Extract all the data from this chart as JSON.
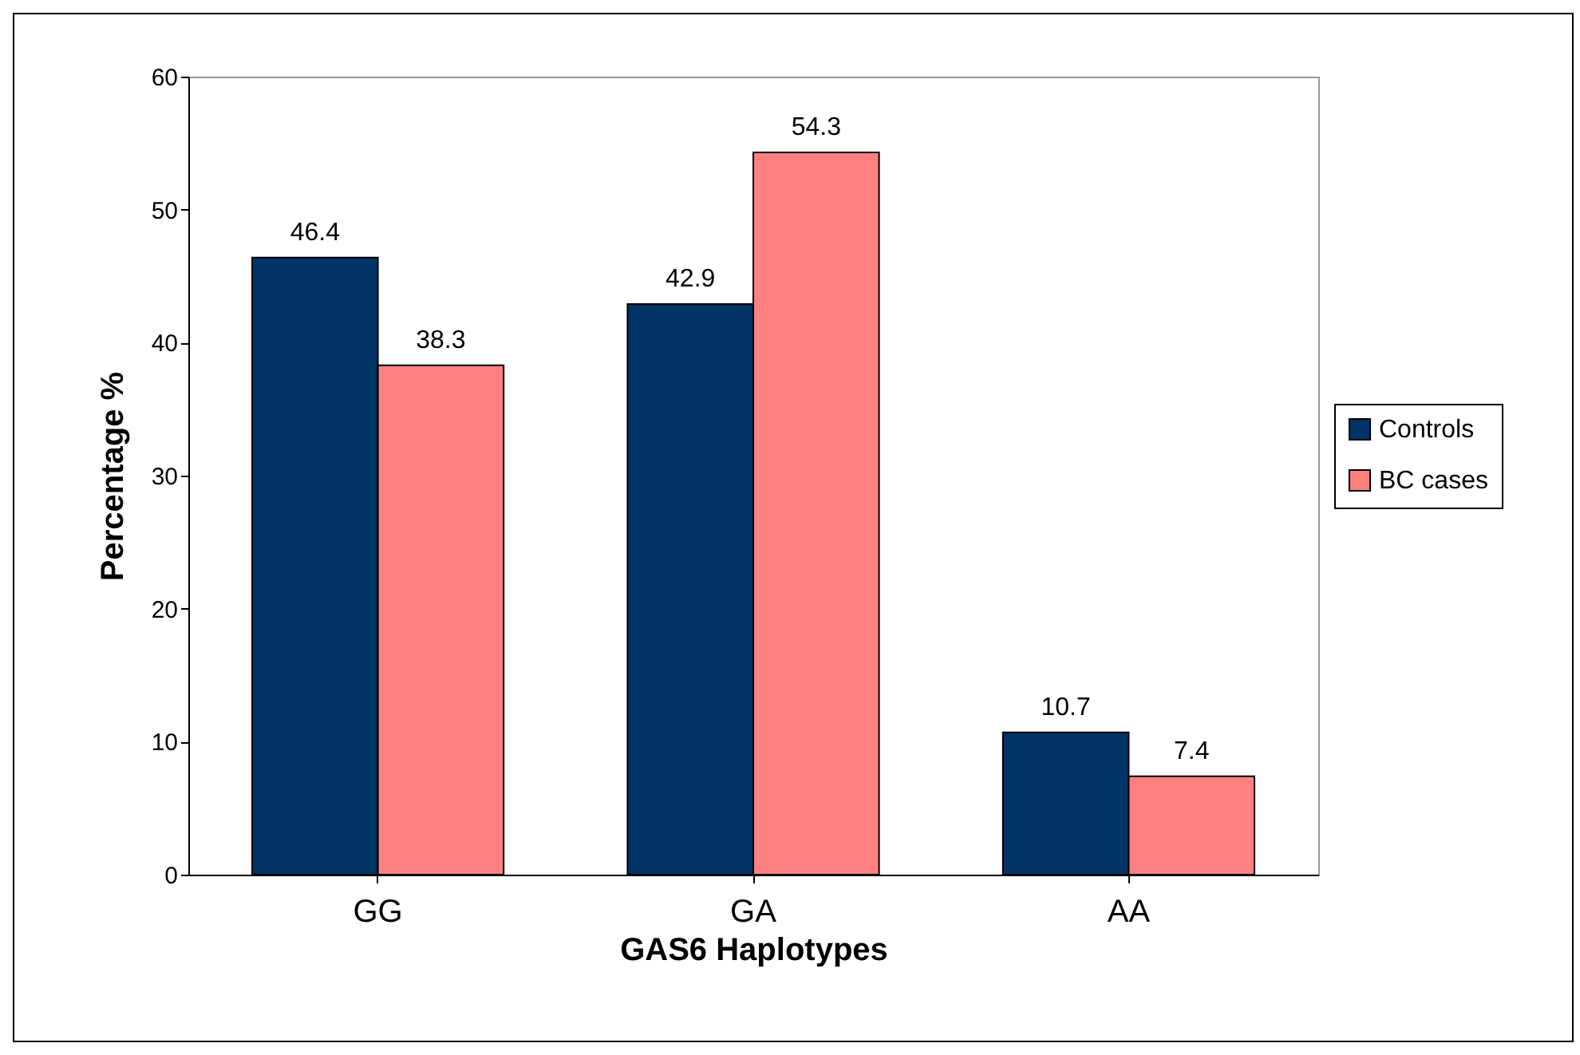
{
  "chart_data": {
    "type": "bar",
    "xlabel": "GAS6 Haplotypes",
    "ylabel": "Percentage %",
    "categories": [
      "GG",
      "GA",
      "AA"
    ],
    "series": [
      {
        "name": "Controls",
        "color": "#003366",
        "values": [
          46.4,
          42.9,
          10.7
        ]
      },
      {
        "name": "BC cases",
        "color": "#ff8080",
        "values": [
          38.3,
          54.3,
          7.4
        ]
      }
    ],
    "ylim": [
      0,
      60
    ],
    "yticks": [
      0,
      10,
      20,
      30,
      40,
      50,
      60
    ],
    "data_labels": true,
    "legend": "right",
    "grid": false
  }
}
